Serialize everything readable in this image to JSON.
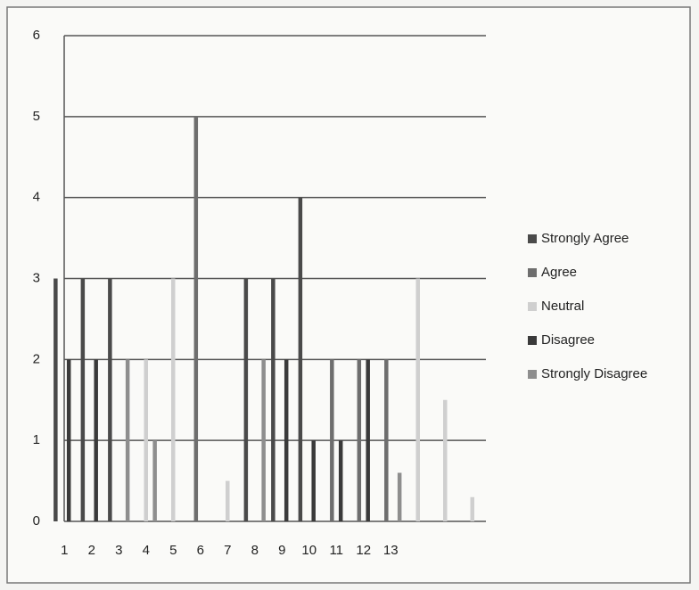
{
  "chart_data": {
    "type": "bar",
    "categories": [
      "1",
      "2",
      "3",
      "4",
      "5",
      "6",
      "7",
      "8",
      "9",
      "10",
      "11",
      "12",
      "13",
      null,
      null,
      null
    ],
    "series": [
      {
        "name": "Strongly Agree",
        "color": "#4a4a4a",
        "values": [
          3,
          3,
          3,
          0,
          0,
          0,
          0,
          3,
          3,
          4,
          0,
          0,
          0,
          0,
          0,
          0
        ]
      },
      {
        "name": "Agree",
        "color": "#6e6e6e",
        "values": [
          0,
          0,
          0,
          0,
          0,
          5,
          0,
          0,
          0,
          0,
          2,
          2,
          2,
          0,
          0,
          0
        ]
      },
      {
        "name": "Neutral",
        "color": "#cfcfcf",
        "values": [
          0,
          0,
          0,
          2,
          3,
          0,
          0.5,
          0,
          0,
          0,
          0,
          0,
          0,
          3,
          1.5,
          0.3
        ]
      },
      {
        "name": "Disagree",
        "color": "#3a3a3a",
        "values": [
          2,
          2,
          0,
          0,
          0,
          0,
          0,
          0,
          2,
          1,
          1,
          2,
          0,
          0,
          0,
          0
        ]
      },
      {
        "name": "Strongly Disagree",
        "color": "#8e8e8e",
        "values": [
          0,
          0,
          2,
          1,
          0,
          0,
          0,
          2,
          0,
          0,
          0,
          0,
          0.6,
          0,
          0,
          0
        ]
      }
    ],
    "ylim": [
      0,
      6
    ],
    "yticks": [
      0,
      1,
      2,
      3,
      4,
      5,
      6
    ],
    "grid": true
  }
}
